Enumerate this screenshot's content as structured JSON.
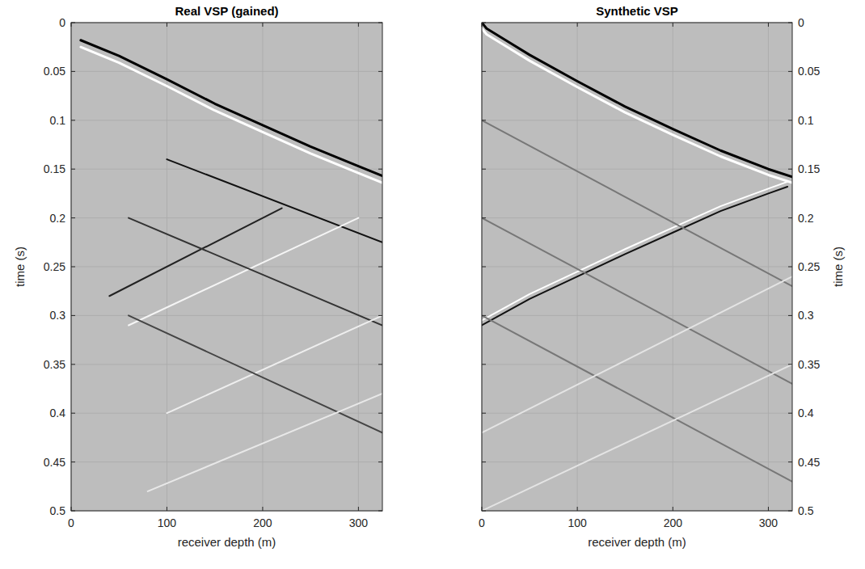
{
  "chart_data": [
    {
      "type": "line",
      "title": "Real VSP (gained)",
      "x_label": "receiver depth (m)",
      "y_label": "time (s)",
      "xlim": [
        0,
        325
      ],
      "ylim": [
        0,
        0.5
      ],
      "xticks": [
        0,
        100,
        200,
        300
      ],
      "yticks": [
        0,
        0.05,
        0.1,
        0.15,
        0.2,
        0.25,
        0.3,
        0.35,
        0.4,
        0.45,
        0.5
      ],
      "grid": true,
      "series": [
        {
          "color": "#000000",
          "line_style": "solid",
          "x": [
            10,
            50,
            100,
            150,
            200,
            250,
            300,
            325
          ],
          "values": [
            0.018,
            0.034,
            0.058,
            0.083,
            0.105,
            0.127,
            0.147,
            0.157
          ]
        },
        {
          "color": "#ffffff",
          "line_style": "solid",
          "x": [
            10,
            50,
            100,
            150,
            200,
            250,
            300,
            325
          ],
          "values": [
            0.025,
            0.041,
            0.065,
            0.09,
            0.112,
            0.134,
            0.154,
            0.164
          ]
        },
        {
          "color": "#111111",
          "line_style": "solid",
          "x": [
            100,
            325
          ],
          "values": [
            0.14,
            0.225
          ]
        },
        {
          "color": "#f5f5f5",
          "line_style": "solid",
          "x": [
            60,
            300
          ],
          "values": [
            0.31,
            0.2
          ]
        },
        {
          "color": "#222222",
          "line_style": "solid",
          "x": [
            40,
            220
          ],
          "values": [
            0.28,
            0.19
          ]
        },
        {
          "color": "#333333",
          "line_style": "solid",
          "x": [
            60,
            325
          ],
          "values": [
            0.2,
            0.31
          ]
        },
        {
          "color": "#eeeeee",
          "line_style": "solid",
          "x": [
            100,
            325
          ],
          "values": [
            0.4,
            0.3
          ]
        },
        {
          "color": "#444444",
          "line_style": "solid",
          "x": [
            60,
            325
          ],
          "values": [
            0.3,
            0.42
          ]
        },
        {
          "color": "#e8e8e8",
          "line_style": "solid",
          "x": [
            80,
            325
          ],
          "values": [
            0.48,
            0.38
          ]
        }
      ]
    },
    {
      "type": "line",
      "title": "Synthetic VSP",
      "x_label": "receiver depth (m)",
      "y_label": "time (s)",
      "xlim": [
        0,
        325
      ],
      "ylim": [
        0,
        0.5
      ],
      "xticks": [
        0,
        100,
        200,
        300
      ],
      "yticks": [
        0,
        0.05,
        0.1,
        0.15,
        0.2,
        0.25,
        0.3,
        0.35,
        0.4,
        0.45,
        0.5
      ],
      "grid": true,
      "series": [
        {
          "color": "#000000",
          "line_style": "solid",
          "x": [
            0,
            5,
            25,
            50,
            100,
            150,
            200,
            250,
            300,
            325
          ],
          "values": [
            0,
            0.006,
            0.018,
            0.033,
            0.06,
            0.086,
            0.109,
            0.131,
            0.15,
            0.158
          ]
        },
        {
          "color": "#ffffff",
          "line_style": "solid",
          "x": [
            0,
            5,
            25,
            50,
            100,
            150,
            200,
            250,
            300,
            325
          ],
          "values": [
            0.006,
            0.012,
            0.024,
            0.039,
            0.066,
            0.092,
            0.115,
            0.137,
            0.156,
            0.164
          ]
        },
        {
          "color": "#ffffff",
          "line_style": "solid",
          "x": [
            0,
            50,
            100,
            150,
            200,
            250,
            300,
            320
          ],
          "values": [
            0.305,
            0.278,
            0.255,
            0.232,
            0.21,
            0.188,
            0.17,
            0.163
          ]
        },
        {
          "color": "#111111",
          "line_style": "solid",
          "x": [
            0,
            50,
            100,
            150,
            200,
            250,
            300,
            320
          ],
          "values": [
            0.31,
            0.283,
            0.26,
            0.237,
            0.215,
            0.193,
            0.175,
            0.168
          ]
        },
        {
          "color": "#777777",
          "line_style": "solid",
          "x": [
            0,
            325
          ],
          "values": [
            0.1,
            0.27
          ]
        },
        {
          "color": "#777777",
          "line_style": "solid",
          "x": [
            0,
            325
          ],
          "values": [
            0.2,
            0.37
          ]
        },
        {
          "color": "#777777",
          "line_style": "solid",
          "x": [
            0,
            325
          ],
          "values": [
            0.3,
            0.47
          ]
        },
        {
          "color": "#e4e4e4",
          "line_style": "solid",
          "x": [
            0,
            325
          ],
          "values": [
            0.42,
            0.26
          ]
        },
        {
          "color": "#e4e4e4",
          "line_style": "solid",
          "x": [
            0,
            325
          ],
          "values": [
            0.5,
            0.35
          ]
        }
      ]
    }
  ]
}
